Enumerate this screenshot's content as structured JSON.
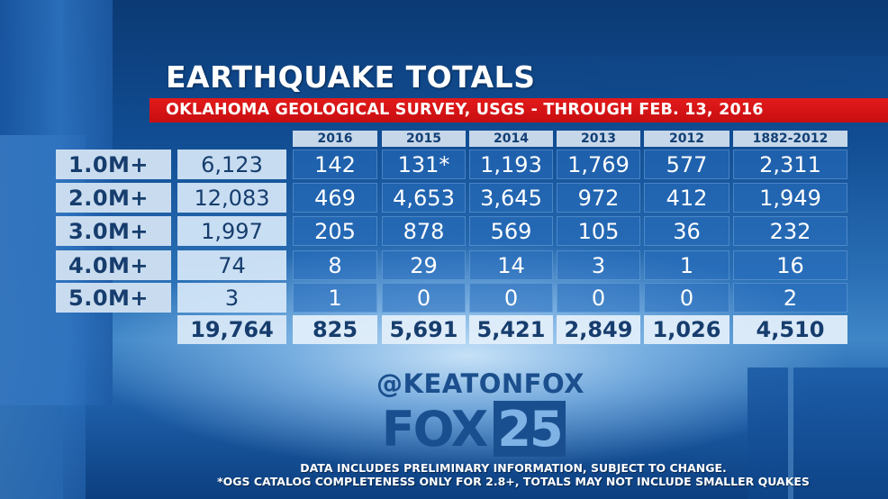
{
  "title": "EARTHQUAKE TOTALS",
  "subtitle": "OKLAHOMA GEOLOGICAL SURVEY, USGS - THROUGH FEB. 13, 2016",
  "table": {
    "years": [
      "2016",
      "2015",
      "2014",
      "2013",
      "2012",
      "1882-2012"
    ],
    "rows": [
      {
        "magnitude": "1.0M+",
        "total": "6,123",
        "values": [
          "142",
          "131*",
          "1,193",
          "1,769",
          "577",
          "2,311"
        ]
      },
      {
        "magnitude": "2.0M+",
        "total": "12,083",
        "values": [
          "469",
          "4,653",
          "3,645",
          "972",
          "412",
          "1,949"
        ]
      },
      {
        "magnitude": "3.0M+",
        "total": "1,997",
        "values": [
          "205",
          "878",
          "569",
          "105",
          "36",
          "232"
        ]
      },
      {
        "magnitude": "4.0M+",
        "total": "74",
        "values": [
          "8",
          "29",
          "14",
          "3",
          "1",
          "16"
        ]
      },
      {
        "magnitude": "5.0M+",
        "total": "3",
        "values": [
          "1",
          "0",
          "0",
          "0",
          "0",
          "2"
        ]
      }
    ],
    "totals_row": {
      "grand_total": "19,764",
      "values": [
        "825",
        "5,691",
        "5,421",
        "2,849",
        "1,026",
        "4,510"
      ]
    }
  },
  "branding": {
    "handle": "@KEATONFOX",
    "logo_text": "FOX",
    "logo_number": "25"
  },
  "disclaimer": {
    "line1": "DATA INCLUDES PRELIMINARY INFORMATION, SUBJECT TO CHANGE.",
    "line2": "*OGS CATALOG COMPLETENESS ONLY  FOR 2.8+, TOTALS MAY NOT INCLUDE SMALLER QUAKES"
  },
  "colors": {
    "accent_red": "#d31215",
    "navy": "#163d6d",
    "light_cell": "#c9dcef"
  }
}
